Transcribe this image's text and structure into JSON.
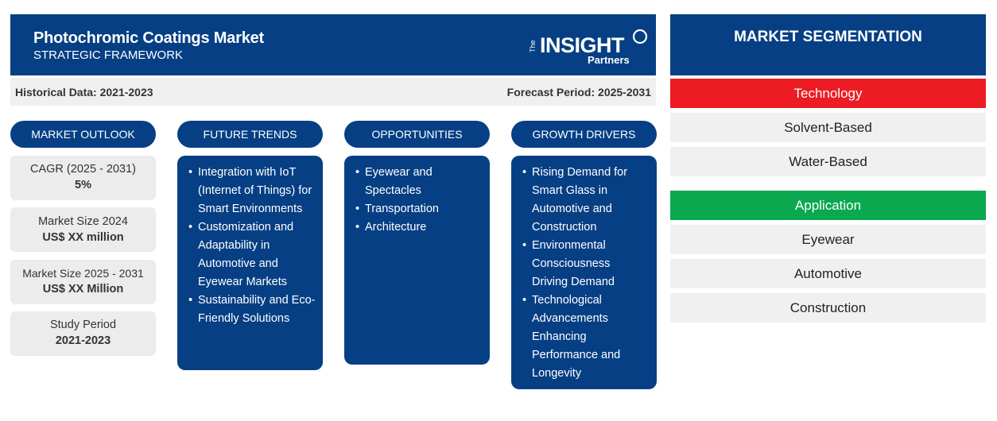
{
  "header": {
    "title": "Photochromic Coatings Market",
    "subtitle": "STRATEGIC FRAMEWORK",
    "logo": {
      "line1": "The",
      "line2": "INSIGHT",
      "line3": "Partners"
    }
  },
  "period": {
    "historical": "Historical Data: 2021-2023",
    "forecast": "Forecast Period: 2025-2031"
  },
  "columns": {
    "outlook": "MARKET OUTLOOK",
    "trends": "FUTURE TRENDS",
    "opportunities": "OPPORTUNITIES",
    "drivers": "GROWTH DRIVERS"
  },
  "outlook": [
    {
      "label": "CAGR (2025 - 2031)",
      "value": "5%"
    },
    {
      "label": "Market Size 2024",
      "value": "US$ XX million"
    },
    {
      "label": "Market Size 2025 - 2031",
      "value": "US$ XX Million"
    },
    {
      "label": "Study Period",
      "value": "2021-2023"
    }
  ],
  "trends": [
    "Integration with IoT (Internet of Things) for Smart Environments",
    "Customization and Adaptability in Automotive and Eyewear Markets",
    "Sustainability and Eco-Friendly Solutions"
  ],
  "opportunities": [
    "Eyewear and Spectacles",
    "Transportation",
    "Architecture"
  ],
  "drivers": [
    "Rising Demand for Smart Glass in Automotive and Construction",
    "Environmental Consciousness Driving Demand",
    "Technological Advancements Enhancing Performance and Longevity"
  ],
  "segmentation": {
    "title": "MARKET SEGMENTATION",
    "categories": [
      {
        "name": "Technology",
        "color": "#ed1c24",
        "items": [
          "Solvent-Based",
          "Water-Based"
        ]
      },
      {
        "name": "Application",
        "color": "#0aa84f",
        "items": [
          "Eyewear",
          "Automotive",
          "Construction"
        ]
      }
    ]
  },
  "colors": {
    "primary": "#063f84",
    "technology": "#ed1c24",
    "application": "#0aa84f",
    "panel": "#f0f0f0"
  }
}
